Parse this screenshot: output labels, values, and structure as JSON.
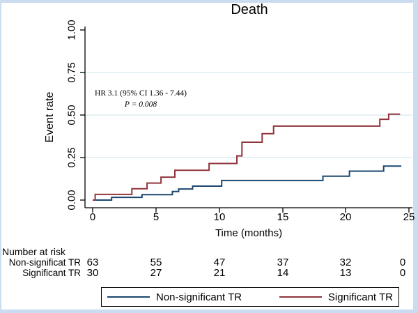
{
  "title": "Death",
  "annotation": {
    "line1": "HR 3.1 (95% CI 1.36 - 7.44)",
    "line2": "P = 0.008"
  },
  "chart_data": {
    "type": "line",
    "subtype": "kaplan-meier-step",
    "title": "Death",
    "xlabel": "Time (months)",
    "ylabel": "Event rate",
    "xlim": [
      0,
      25
    ],
    "ylim": [
      0,
      1.0
    ],
    "x_ticks": [
      "0",
      "5",
      "10",
      "15",
      "20",
      "25"
    ],
    "y_ticks": [
      "0.00",
      "0.25",
      "0.50",
      "0.75",
      "1.00"
    ],
    "grid": "horizontal light-blue at 0.25/0.50/0.75",
    "legend_position": "bottom",
    "annotation": [
      "HR 3.1 (95% CI 1.36 - 7.44)",
      "P = 0.008"
    ],
    "series": [
      {
        "name": "Non-significant TR",
        "color": "#1a476f",
        "steps": [
          [
            0,
            0
          ],
          [
            1.5,
            0.016
          ],
          [
            3.9,
            0.032
          ],
          [
            6.3,
            0.05
          ],
          [
            6.8,
            0.065
          ],
          [
            7.9,
            0.082
          ],
          [
            10.2,
            0.115
          ],
          [
            18.2,
            0.14
          ],
          [
            20.3,
            0.17
          ],
          [
            23.0,
            0.2
          ],
          [
            24.4,
            0.2
          ]
        ]
      },
      {
        "name": "Significant TR",
        "color": "#90353b",
        "steps": [
          [
            0,
            0
          ],
          [
            0.2,
            0.033
          ],
          [
            3.1,
            0.067
          ],
          [
            4.3,
            0.1
          ],
          [
            5.4,
            0.135
          ],
          [
            6.5,
            0.175
          ],
          [
            9.2,
            0.215
          ],
          [
            11.4,
            0.26
          ],
          [
            11.8,
            0.34
          ],
          [
            13.4,
            0.39
          ],
          [
            14.3,
            0.435
          ],
          [
            22.7,
            0.475
          ],
          [
            23.4,
            0.505
          ],
          [
            24.3,
            0.505
          ]
        ]
      }
    ]
  },
  "risk_table": {
    "heading": "Number at risk",
    "rows": [
      {
        "label": "Non-significat TR",
        "values": [
          "63",
          "55",
          "47",
          "37",
          "32",
          "0"
        ]
      },
      {
        "label": "Significant TR",
        "values": [
          "30",
          "27",
          "21",
          "14",
          "13",
          "0"
        ]
      }
    ]
  },
  "legend": {
    "items": [
      {
        "label": "Non-significant TR",
        "color": "#1a476f"
      },
      {
        "label": "Significant TR",
        "color": "#90353b"
      }
    ]
  },
  "colors": {
    "non_significant": "#1a476f",
    "significant": "#90353b",
    "gridline": "#dcedf2",
    "outer_border": "#cadcf0"
  }
}
